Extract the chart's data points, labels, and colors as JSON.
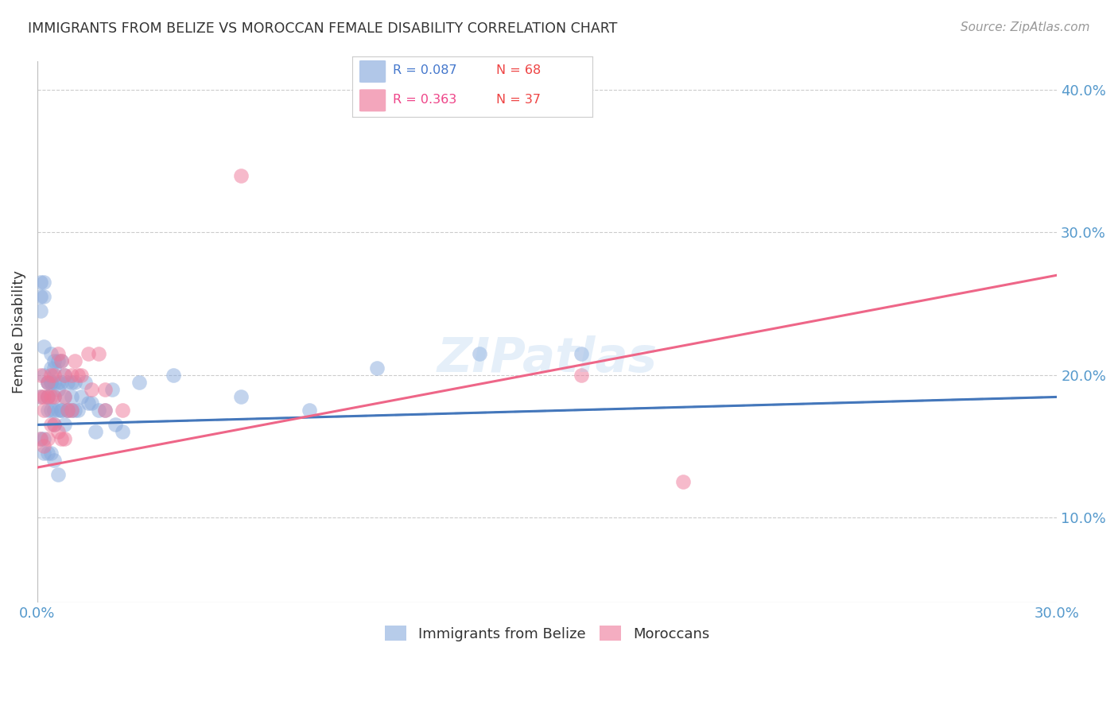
{
  "title": "IMMIGRANTS FROM BELIZE VS MOROCCAN FEMALE DISABILITY CORRELATION CHART",
  "source": "Source: ZipAtlas.com",
  "ylabel": "Female Disability",
  "xlim": [
    0.0,
    0.3
  ],
  "ylim": [
    0.04,
    0.42
  ],
  "x_ticks": [
    0.0,
    0.05,
    0.1,
    0.15,
    0.2,
    0.25,
    0.3
  ],
  "x_tick_labels": [
    "0.0%",
    "",
    "",
    "",
    "",
    "",
    "30.0%"
  ],
  "y_ticks_right": [
    0.1,
    0.2,
    0.3,
    0.4
  ],
  "y_tick_labels_right": [
    "10.0%",
    "20.0%",
    "30.0%",
    "40.0%"
  ],
  "legend_r1": "R = 0.087",
  "legend_n1": "N = 68",
  "legend_r2": "R = 0.363",
  "legend_n2": "N = 37",
  "legend_label1": "Immigrants from Belize",
  "legend_label2": "Moroccans",
  "background_color": "#ffffff",
  "grid_color": "#cccccc",
  "title_color": "#333333",
  "source_color": "#999999",
  "blue_color": "#88aadd",
  "pink_color": "#ee7799",
  "axis_color": "#5599cc",
  "belize_x": [
    0.001,
    0.001,
    0.001,
    0.002,
    0.002,
    0.002,
    0.003,
    0.003,
    0.003,
    0.003,
    0.004,
    0.004,
    0.004,
    0.004,
    0.005,
    0.005,
    0.005,
    0.005,
    0.005,
    0.006,
    0.006,
    0.006,
    0.007,
    0.007,
    0.007,
    0.008,
    0.008,
    0.008,
    0.009,
    0.009,
    0.01,
    0.01,
    0.011,
    0.011,
    0.012,
    0.013,
    0.014,
    0.015,
    0.016,
    0.017,
    0.018,
    0.02,
    0.022,
    0.023,
    0.025,
    0.001,
    0.002,
    0.002,
    0.003,
    0.004,
    0.005,
    0.006,
    0.001,
    0.002,
    0.003,
    0.004,
    0.005,
    0.006,
    0.007,
    0.009,
    0.01,
    0.03,
    0.04,
    0.06,
    0.08,
    0.1,
    0.13,
    0.16
  ],
  "belize_y": [
    0.265,
    0.255,
    0.245,
    0.265,
    0.255,
    0.22,
    0.195,
    0.195,
    0.185,
    0.175,
    0.215,
    0.205,
    0.195,
    0.175,
    0.21,
    0.205,
    0.185,
    0.175,
    0.165,
    0.21,
    0.195,
    0.175,
    0.21,
    0.195,
    0.175,
    0.2,
    0.185,
    0.165,
    0.195,
    0.175,
    0.195,
    0.175,
    0.195,
    0.175,
    0.175,
    0.185,
    0.195,
    0.18,
    0.18,
    0.16,
    0.175,
    0.175,
    0.19,
    0.165,
    0.16,
    0.155,
    0.155,
    0.145,
    0.145,
    0.145,
    0.14,
    0.13,
    0.185,
    0.2,
    0.185,
    0.195,
    0.195,
    0.19,
    0.175,
    0.175,
    0.185,
    0.195,
    0.2,
    0.185,
    0.175,
    0.205,
    0.215,
    0.215
  ],
  "morocco_x": [
    0.001,
    0.001,
    0.002,
    0.002,
    0.003,
    0.003,
    0.004,
    0.004,
    0.005,
    0.005,
    0.006,
    0.007,
    0.008,
    0.008,
    0.009,
    0.01,
    0.011,
    0.012,
    0.013,
    0.015,
    0.016,
    0.018,
    0.02,
    0.025,
    0.001,
    0.002,
    0.003,
    0.004,
    0.005,
    0.006,
    0.007,
    0.008,
    0.01,
    0.02,
    0.06,
    0.16,
    0.19
  ],
  "morocco_y": [
    0.2,
    0.185,
    0.185,
    0.175,
    0.195,
    0.185,
    0.2,
    0.185,
    0.2,
    0.185,
    0.215,
    0.21,
    0.2,
    0.185,
    0.175,
    0.2,
    0.21,
    0.2,
    0.2,
    0.215,
    0.19,
    0.215,
    0.19,
    0.175,
    0.155,
    0.15,
    0.155,
    0.165,
    0.165,
    0.16,
    0.155,
    0.155,
    0.175,
    0.175,
    0.34,
    0.2,
    0.125
  ]
}
